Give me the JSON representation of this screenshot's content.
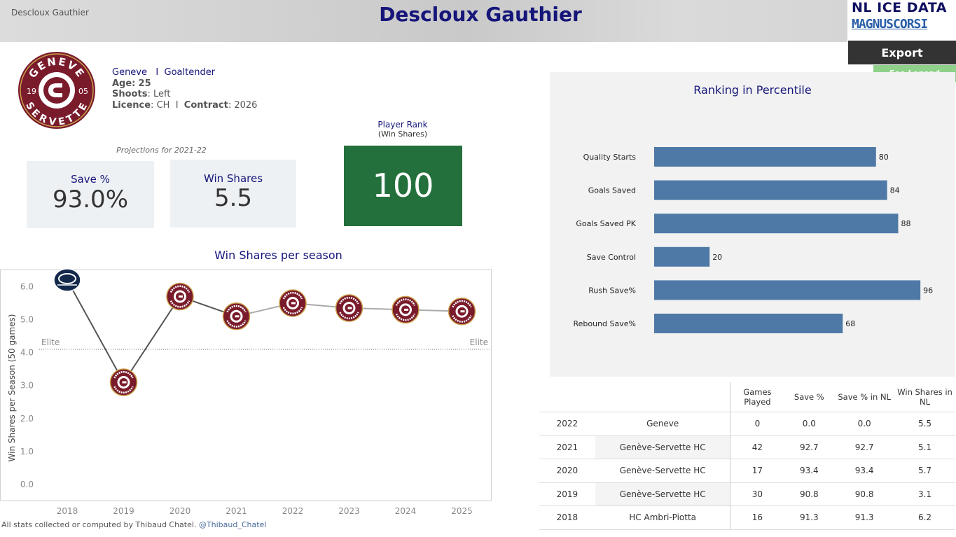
{
  "header": {
    "name_small": "Descloux Gauthier",
    "title": "Descloux Gauthier",
    "brand_top": "NL ICE DATA",
    "brand_bottom": "MAGNUSCORSI",
    "export_label": "Export",
    "legend_label": "See Legend"
  },
  "team_logo": {
    "top_text": "GENEVE",
    "bottom_text": "SERVETTE",
    "year_left": "19",
    "year_right": "05",
    "primary": "#7a1b2c",
    "accent": "#c9a04a"
  },
  "player": {
    "team": "Geneve",
    "separator": "I",
    "position": "Goaltender",
    "age_label": "Age:",
    "age": "25",
    "shoots_label": "Shoots",
    "shoots": "Left",
    "licence_label": "Licence",
    "licence": "CH",
    "contract_label": "Contract",
    "contract": "2026"
  },
  "projections": {
    "label": "Projections for 2021-22",
    "save_pct_label": "Save %",
    "save_pct": "93.0%",
    "win_shares_label": "Win Shares",
    "win_shares": "5.5"
  },
  "rank": {
    "title": "Player Rank",
    "subtitle": "(Win Shares)",
    "value": "100",
    "color": "#23703d"
  },
  "chart_data": [
    {
      "type": "line",
      "title": "Win Shares per season",
      "ylabel": "Win Shares per Season (50 games)",
      "x": [
        "2018",
        "2019",
        "2020",
        "2021",
        "2022",
        "2023",
        "2024",
        "2025"
      ],
      "values": [
        6.2,
        3.1,
        5.7,
        5.1,
        5.5,
        5.35,
        5.3,
        5.25
      ],
      "team_markers": [
        "ambri",
        "geneve",
        "geneve",
        "geneve",
        "geneve",
        "geneve",
        "geneve",
        "geneve"
      ],
      "ylim": [
        -0.5,
        6.5
      ],
      "yticks": [
        "0.0",
        "1.0",
        "2.0",
        "3.0",
        "4.0",
        "5.0",
        "6.0"
      ],
      "reference_line": {
        "value": 4.1,
        "label_left": "Elite",
        "label_right": "Elite"
      },
      "grid": false
    },
    {
      "type": "bar",
      "orientation": "horizontal",
      "title": "Ranking in Percentile",
      "categories": [
        "Quality Starts",
        "Goals Saved",
        "Goals Saved PK",
        "Save Control",
        "Rush Save%",
        "Rebound Save%"
      ],
      "values": [
        80,
        84,
        88,
        20,
        96,
        68
      ],
      "xlim": [
        0,
        100
      ],
      "color": "#4e79a7"
    }
  ],
  "credit": {
    "text": "All stats collected or computed by Thibaud Chatel.",
    "handle": "@Thibaud_Chatel"
  },
  "table": {
    "headers": [
      "Games Played",
      "Save %",
      "Save % in NL",
      "Win Shares in NL"
    ],
    "rows": [
      {
        "season": "2022",
        "team": "Geneve",
        "gp": "0",
        "sv": "0.0",
        "svnl": "0.0",
        "ws": "5.5"
      },
      {
        "season": "2021",
        "team": "Genève-Servette HC",
        "gp": "42",
        "sv": "92.7",
        "svnl": "92.7",
        "ws": "5.1"
      },
      {
        "season": "2020",
        "team": "Genève-Servette HC",
        "gp": "17",
        "sv": "93.4",
        "svnl": "93.4",
        "ws": "5.7"
      },
      {
        "season": "2019",
        "team": "Genève-Servette HC",
        "gp": "30",
        "sv": "90.8",
        "svnl": "90.8",
        "ws": "3.1"
      },
      {
        "season": "2018",
        "team": "HC Ambri-Piotta",
        "gp": "16",
        "sv": "91.3",
        "svnl": "91.3",
        "ws": "6.2"
      }
    ]
  }
}
